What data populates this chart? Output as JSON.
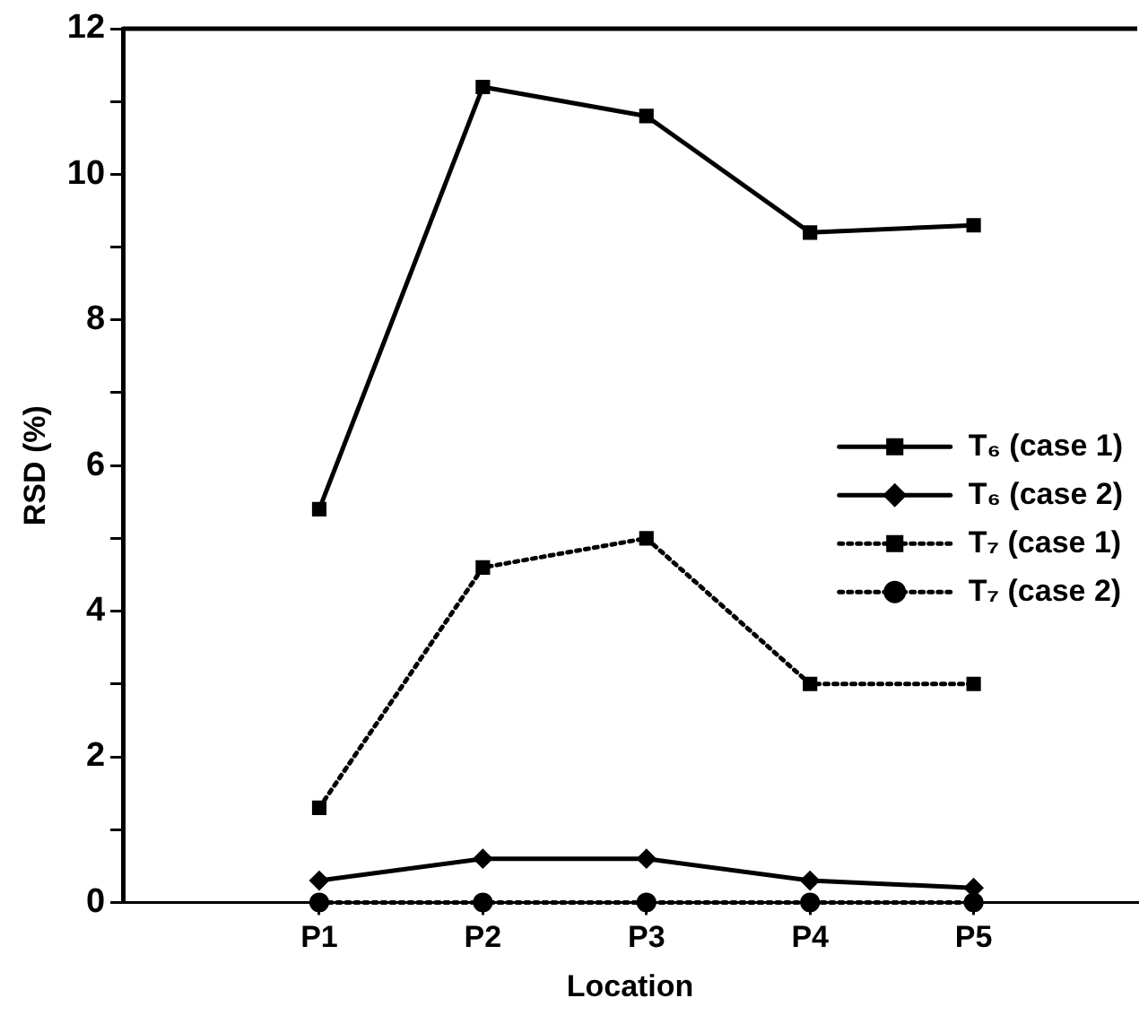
{
  "chart_data": {
    "type": "line",
    "xlabel": "Location",
    "ylabel": "RSD (%)",
    "categories": [
      "P1",
      "P2",
      "P3",
      "P4",
      "P5"
    ],
    "series": [
      {
        "name": "T₆ (case 1)",
        "color": "#000000",
        "values": [
          5.4,
          11.2,
          10.8,
          9.2,
          9.3
        ],
        "marker": "square",
        "line_style": "solid"
      },
      {
        "name": "T₆ (case 2)",
        "color": "#000000",
        "values": [
          0.3,
          0.6,
          0.6,
          0.3,
          0.2
        ],
        "marker": "diamond",
        "line_style": "solid"
      },
      {
        "name": "T₇ (case 1)",
        "color": "#000000",
        "values": [
          1.3,
          4.6,
          5.0,
          3.0,
          3.0
        ],
        "marker": "square",
        "line_style": "dotted"
      },
      {
        "name": "T₇ (case 2)",
        "color": "#000000",
        "values": [
          0,
          0,
          0,
          0,
          0
        ],
        "marker": "circle",
        "line_style": "dotted"
      }
    ],
    "ylim": [
      0,
      12
    ],
    "yticks": [
      0,
      {
        "value": 1,
        "label": null
      },
      2,
      {
        "value": 3,
        "label": null
      },
      4,
      {
        "value": 5,
        "label": null
      },
      6,
      {
        "value": 7,
        "label": null
      },
      8,
      {
        "value": 9,
        "label": null
      },
      10,
      {
        "value": 11,
        "label": null
      },
      12
    ],
    "grid": false,
    "legend": "right"
  }
}
